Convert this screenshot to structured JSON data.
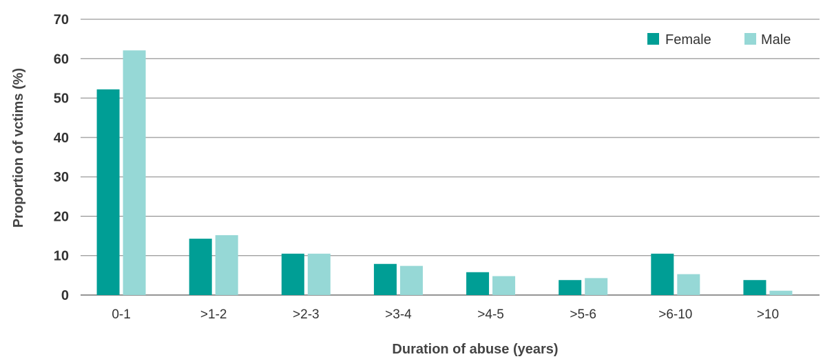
{
  "chart_data": {
    "type": "bar",
    "title": "",
    "xlabel": "Duration of abuse (years)",
    "ylabel": "Proportion of vctims (%)",
    "ylim": [
      0,
      70
    ],
    "yticks": [
      0,
      10,
      20,
      30,
      40,
      50,
      60,
      70
    ],
    "grid": true,
    "legend_position": "top-right",
    "categories": [
      "0-1",
      ">1-2",
      ">2-3",
      ">3-4",
      ">4-5",
      ">5-6",
      ">6-10",
      ">10"
    ],
    "series": [
      {
        "name": "Female",
        "color": "#009e95",
        "values": [
          52.2,
          14.3,
          10.5,
          7.9,
          5.8,
          3.8,
          10.5,
          3.8
        ]
      },
      {
        "name": "Male",
        "color": "#96d8d6",
        "values": [
          62.1,
          15.2,
          10.5,
          7.4,
          4.8,
          4.3,
          5.3,
          1.1
        ]
      }
    ]
  }
}
